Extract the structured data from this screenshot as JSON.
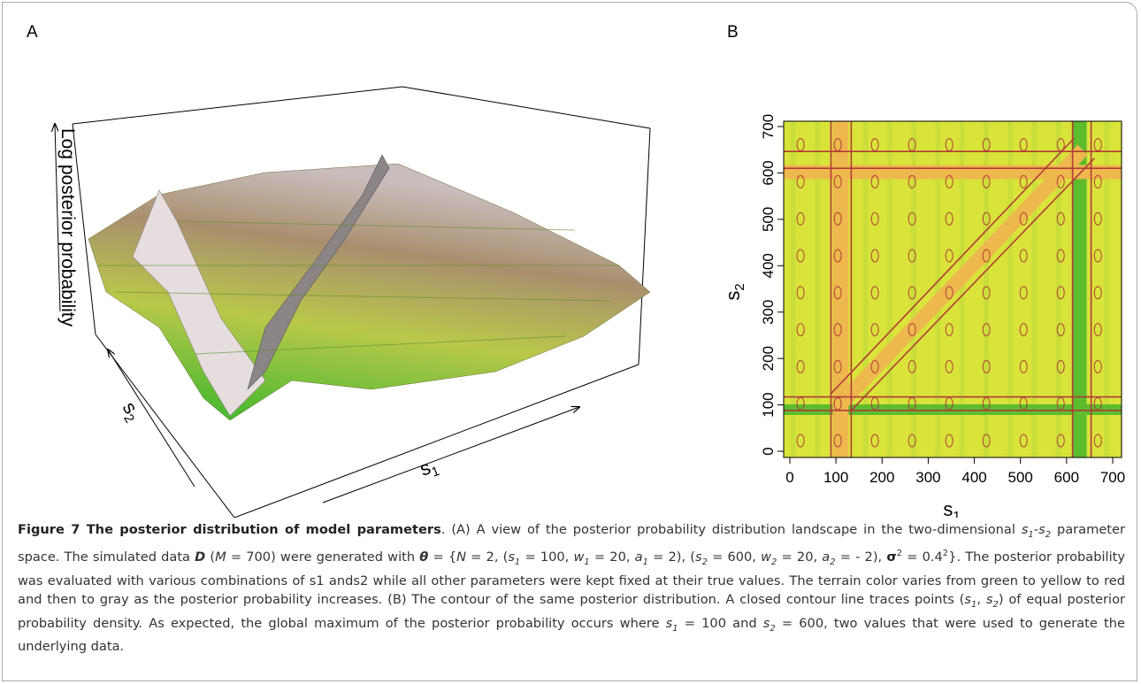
{
  "panel_a": {
    "label": "A",
    "zlabel": "Log posterior probability",
    "s1": {
      "sym": "s",
      "sub": "1"
    },
    "s2": {
      "sym": "s",
      "sub": "2"
    }
  },
  "panel_b": {
    "label": "B",
    "xlim": [
      0,
      700
    ],
    "ylim": [
      0,
      700
    ],
    "xticks": [
      0,
      100,
      200,
      300,
      400,
      500,
      600,
      700
    ],
    "yticks": [
      0,
      100,
      200,
      300,
      400,
      500,
      600,
      700
    ],
    "xlabel": {
      "sym": "s",
      "sub": "1"
    },
    "ylabel": {
      "sym": "s",
      "sub": "2"
    }
  },
  "caption": {
    "runs": [
      {
        "t": "Figure 7 The posterior distribution of model parameters",
        "f": "b"
      },
      {
        "t": ". (A) A view of the posterior probability distribution landscape in the two-dimensional ",
        "f": ""
      },
      {
        "t": "s",
        "f": "i"
      },
      {
        "t": "1",
        "f": "sub"
      },
      {
        "t": "-",
        "f": ""
      },
      {
        "t": "s",
        "f": "i"
      },
      {
        "t": "2",
        "f": "sub"
      },
      {
        "t": " parameter space. The simulated data ",
        "f": ""
      },
      {
        "t": "D",
        "f": "bi"
      },
      {
        "t": " (",
        "f": ""
      },
      {
        "t": "M",
        "f": "i"
      },
      {
        "t": " = 700) were generated with ",
        "f": ""
      },
      {
        "t": "θ",
        "f": "bi"
      },
      {
        "t": " = {",
        "f": ""
      },
      {
        "t": "N",
        "f": "i"
      },
      {
        "t": " = 2, (",
        "f": ""
      },
      {
        "t": "s",
        "f": "i"
      },
      {
        "t": "1",
        "f": "sub"
      },
      {
        "t": " = 100, ",
        "f": ""
      },
      {
        "t": "w",
        "f": "i"
      },
      {
        "t": "1",
        "f": "sub"
      },
      {
        "t": " = 20, ",
        "f": ""
      },
      {
        "t": "a",
        "f": "i"
      },
      {
        "t": "1",
        "f": "sub"
      },
      {
        "t": " = 2), (",
        "f": ""
      },
      {
        "t": "s",
        "f": "i"
      },
      {
        "t": "2",
        "f": "sub"
      },
      {
        "t": " = 600, ",
        "f": ""
      },
      {
        "t": "w",
        "f": "i"
      },
      {
        "t": "2",
        "f": "sub"
      },
      {
        "t": " = 20, ",
        "f": ""
      },
      {
        "t": "a",
        "f": "i"
      },
      {
        "t": "2",
        "f": "sub"
      },
      {
        "t": " = - 2), ",
        "f": ""
      },
      {
        "t": "σ",
        "f": "b"
      },
      {
        "t": "2",
        "f": "sup"
      },
      {
        "t": " = 0.4",
        "f": ""
      },
      {
        "t": "2",
        "f": "sup"
      },
      {
        "t": "}. The posterior probability was evaluated with various combinations of s1 ands2 while all other parameters were kept fixed at their true values. The terrain color varies from green to yellow to red and then to gray as the posterior probability increases. (B) The contour of the same posterior distribution. A closed contour line traces points (",
        "f": ""
      },
      {
        "t": "s",
        "f": "i"
      },
      {
        "t": "1",
        "f": "sub"
      },
      {
        "t": ", ",
        "f": ""
      },
      {
        "t": "s",
        "f": "i"
      },
      {
        "t": "2",
        "f": "sub"
      },
      {
        "t": ") of equal posterior probability density. As expected, the global maximum of the posterior probability occurs where ",
        "f": ""
      },
      {
        "t": "s",
        "f": "i"
      },
      {
        "t": "1",
        "f": "sub"
      },
      {
        "t": " = 100 and ",
        "f": ""
      },
      {
        "t": "s",
        "f": "i"
      },
      {
        "t": "2",
        "f": "sub"
      },
      {
        "t": " = 600, two values that were used to generate the underlying data.",
        "f": ""
      }
    ]
  }
}
